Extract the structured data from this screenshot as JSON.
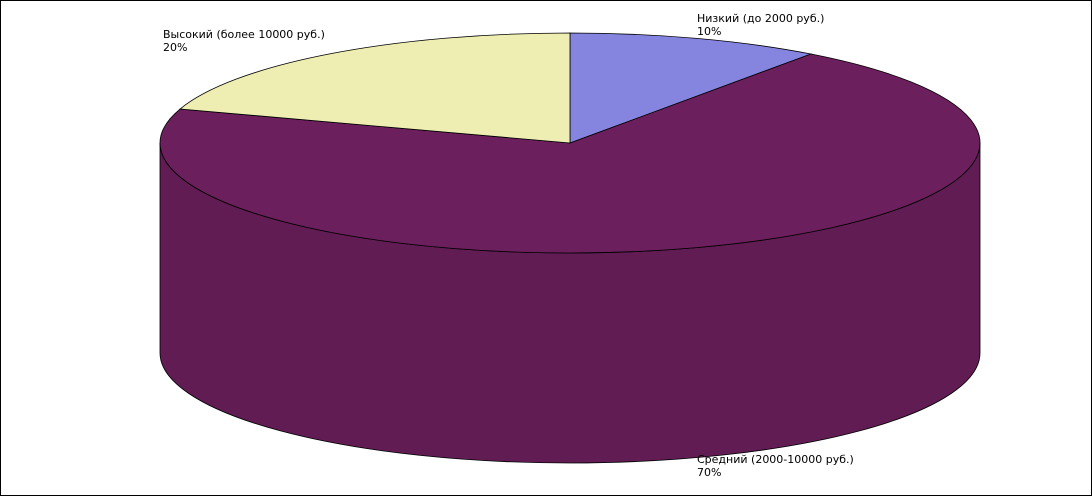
{
  "chart_data": {
    "type": "pie3d",
    "categories": [
      "Низкий (до 2000 руб.)",
      "Средний (2000-10000 руб.)",
      "Высокий (более 10000 руб.)"
    ],
    "values": [
      10,
      70,
      20
    ],
    "value_labels": [
      "10%",
      "70%",
      "20%"
    ],
    "colors": [
      "#8585e0",
      "#6b1f5c",
      "#eeeeb2"
    ]
  }
}
